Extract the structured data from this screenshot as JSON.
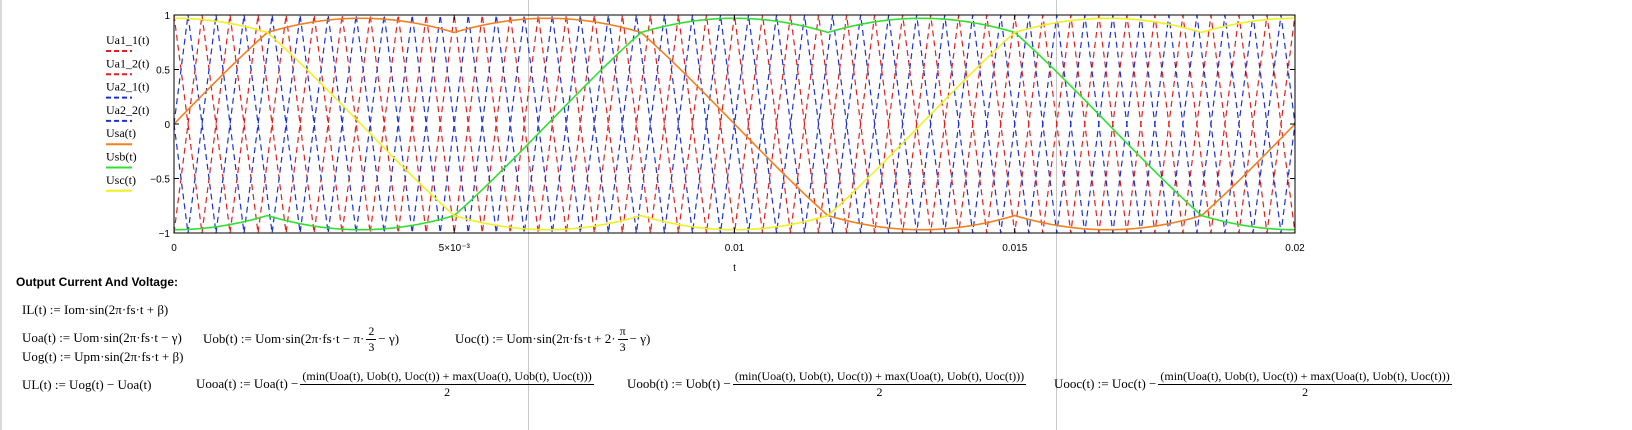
{
  "chart_data": {
    "type": "line",
    "x": {
      "min": 0,
      "max": 0.02
    },
    "ylim": [
      -1,
      1
    ],
    "xlabel": "t",
    "x_tick_labels": [
      "0",
      "5×10⁻³",
      "0.01",
      "0.015",
      "0.02"
    ],
    "x_tick_values": [
      0,
      0.005,
      0.01,
      0.015,
      0.02
    ],
    "y_tick_labels": [
      "1",
      "0.5",
      "0",
      "−0.5",
      "−1"
    ],
    "y_tick_values": [
      1,
      0.5,
      0,
      -0.5,
      -1
    ],
    "grid": false,
    "legend_placement": "left",
    "carrier": {
      "peaks_per_period": 20,
      "description": "triangular carriers"
    },
    "series": [
      {
        "name": "Ua1_1(t)",
        "color": "#e02020",
        "style": "dashed",
        "kind": "carrier",
        "phase": 0.0
      },
      {
        "name": "Ua1_2(t)",
        "color": "#e02020",
        "style": "dashed",
        "kind": "carrier",
        "phase": 0.5
      },
      {
        "name": "Ua2_1(t)",
        "color": "#2030d0",
        "style": "dashed",
        "kind": "carrier",
        "phase": 0.25
      },
      {
        "name": "Ua2_2(t)",
        "color": "#2030d0",
        "style": "dashed",
        "kind": "carrier",
        "phase": 0.75
      },
      {
        "name": "Usa(t)",
        "color": "#f08020",
        "style": "solid",
        "kind": "reference",
        "phase_deg": 0
      },
      {
        "name": "Usb(t)",
        "color": "#30e030",
        "style": "solid",
        "kind": "reference",
        "phase_deg": -120
      },
      {
        "name": "Usc(t)",
        "color": "#f0f020",
        "style": "solid",
        "kind": "reference",
        "phase_deg": 120
      }
    ],
    "reference_amplitude": 1.0,
    "period": 0.02
  },
  "section": {
    "heading": "Output Current And Voltage:"
  },
  "equations": {
    "IL": {
      "lhs": "IL(t)",
      "rhs": ":= Iom·sin(2π·fs·t + β)"
    },
    "Uoa": {
      "lhs": "Uoa(t)",
      "rhs": ":= Uom·sin(2π·fs·t − γ)"
    },
    "Uob": {
      "lhs": "Uob(t)",
      "rhs_pre": ":= Uom·sin(2π·fs·t − π·",
      "num": "2",
      "den": "3",
      "rhs_post": " − γ)"
    },
    "Uoc": {
      "lhs": "Uoc(t)",
      "rhs_pre": ":= Uom·sin(2π·fs·t + 2·",
      "num": "π",
      "den": "3",
      "rhs_post": " − γ)"
    },
    "Uog": {
      "lhs": "Uog(t)",
      "rhs": ":= Upm·sin(2π·fs·t + β)"
    },
    "UL": {
      "lhs": "UL(t)",
      "rhs": ":= Uog(t) − Uoa(t)"
    },
    "Uooa": {
      "lhs": "Uooa(t) := Uoa(t) −",
      "num": "(min(Uoa(t), Uob(t), Uoc(t)) + max(Uoa(t), Uob(t), Uoc(t)))",
      "den": "2"
    },
    "Uoob": {
      "lhs": "Uoob(t) := Uob(t) −",
      "num": "(min(Uoa(t), Uob(t), Uoc(t)) + max(Uoa(t), Uob(t), Uoc(t)))",
      "den": "2"
    },
    "Uooc": {
      "lhs": "Uooc(t) := Uoc(t) −",
      "num": "(min(Uoa(t), Uob(t), Uoc(t)) + max(Uoa(t), Uob(t), Uoc(t)))",
      "den": "2"
    }
  }
}
